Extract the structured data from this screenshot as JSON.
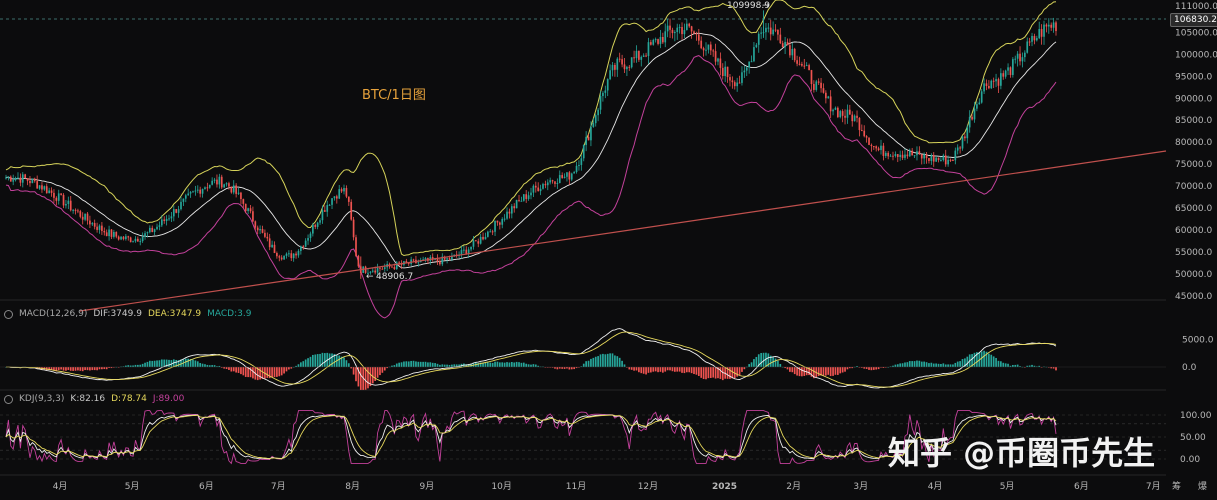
{
  "symbol_label": "BTC/1日图",
  "watermark": "知乎 @币圈币先生",
  "price_axis": {
    "ticks": [
      "111000.0",
      "105000.0",
      "100000.0",
      "95000.0",
      "90000.0",
      "85000.0",
      "80000.0",
      "75000.0",
      "70000.0",
      "65000.0",
      "60000.0",
      "55000.0",
      "50000.0",
      "45000.0"
    ],
    "last_price": "106830.2"
  },
  "annotations": {
    "high": "109998.9",
    "low": "48906.7"
  },
  "macd": {
    "name": "MACD(12,26,9)",
    "dif": "DIF:3749.9",
    "dea": "DEA:3747.9",
    "macd": "MACD:3.9",
    "ticks": [
      "5000.0",
      "0.0"
    ]
  },
  "kdj": {
    "name": "KDJ(9,3,3)",
    "k": "K:82.16",
    "d": "D:78.74",
    "j": "J:89.00",
    "ticks": [
      "100.00",
      "50.00",
      "0.00"
    ]
  },
  "time_axis": [
    "4月",
    "5月",
    "6月",
    "7月",
    "8月",
    "9月",
    "10月",
    "11月",
    "12月",
    "2025",
    "2月",
    "3月",
    "4月",
    "5月",
    "6月",
    "7月"
  ],
  "axis_corner": [
    "筹",
    "爆"
  ],
  "colors": {
    "up": "#26a69a",
    "down": "#ef5350",
    "boll_upper": "#d6d35a",
    "boll_mid": "#e8e8e8",
    "boll_lower": "#c3419b",
    "trendline": "#c0504d",
    "dif": "#f0f0f0",
    "dea": "#e6d85c",
    "k_line": "#f0f0f0",
    "d_line": "#e6d85c",
    "j_line": "#c3419b"
  },
  "chart_data": [
    {
      "type": "candlestick",
      "title": "BTC/1日图",
      "ylim": [
        45000,
        111000
      ],
      "key_points": [
        {
          "date": "2024-03-13",
          "close": 72000
        },
        {
          "date": "2024-05-01",
          "close": 58000
        },
        {
          "date": "2024-06-07",
          "close": 71000
        },
        {
          "date": "2024-07-05",
          "close": 54000
        },
        {
          "date": "2024-07-29",
          "close": 69000
        },
        {
          "date": "2024-08-05",
          "close": 51000,
          "low": 48906.7
        },
        {
          "date": "2024-09-06",
          "close": 53000
        },
        {
          "date": "2024-10-29",
          "close": 72000
        },
        {
          "date": "2024-11-22",
          "close": 98000
        },
        {
          "date": "2024-12-17",
          "close": 106000
        },
        {
          "date": "2025-01-10",
          "close": 94000
        },
        {
          "date": "2025-01-20",
          "close": 106000,
          "high": 109998.9
        },
        {
          "date": "2025-02-25",
          "close": 86000
        },
        {
          "date": "2025-03-10",
          "close": 78000
        },
        {
          "date": "2025-04-07",
          "close": 76000
        },
        {
          "date": "2025-04-25",
          "close": 94000
        },
        {
          "date": "2025-05-22",
          "close": 106830.2
        }
      ]
    },
    {
      "type": "bar",
      "title": "MACD(12,26,9)",
      "series": [
        {
          "name": "DIF",
          "last": 3749.9
        },
        {
          "name": "DEA",
          "last": 3747.9
        },
        {
          "name": "MACD",
          "last": 3.9
        }
      ]
    },
    {
      "type": "line",
      "title": "KDJ(9,3,3)",
      "ylim": [
        0,
        100
      ],
      "series": [
        {
          "name": "K",
          "last": 82.16
        },
        {
          "name": "D",
          "last": 78.74
        },
        {
          "name": "J",
          "last": 89.0
        }
      ]
    }
  ]
}
